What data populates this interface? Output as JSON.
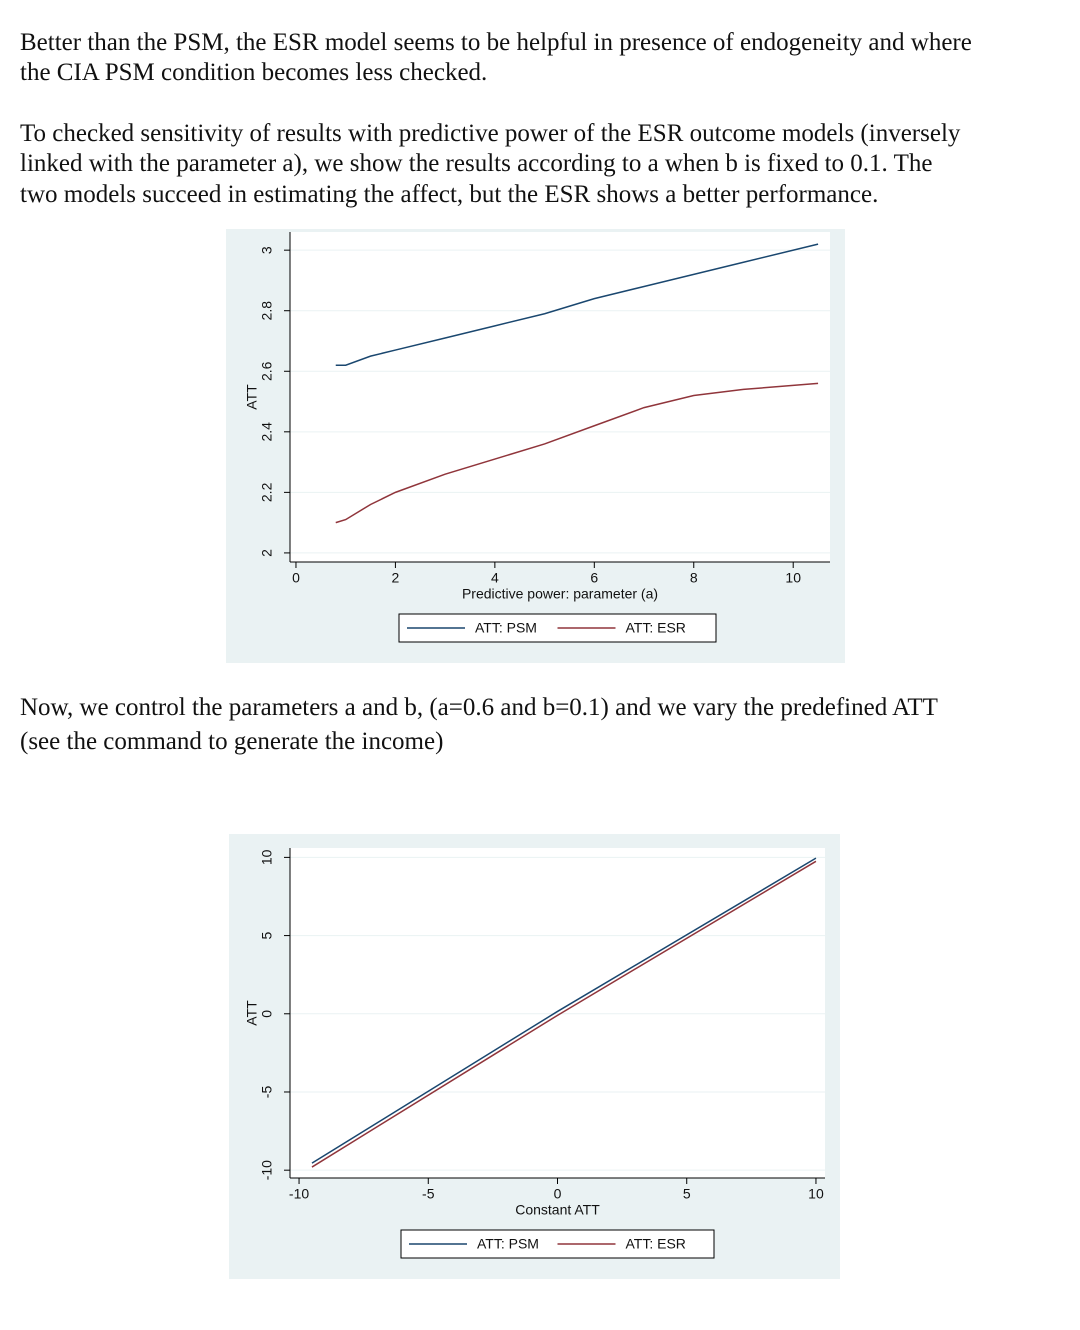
{
  "paragraphs": [
    {
      "lines": [
        "Better than the PSM, the ESR model seems to be helpful in presence of endogeneity and where",
        "the CIA PSM condition becomes less checked."
      ]
    },
    {
      "lines": [
        "To checked sensitivity of results with predictive power of the ESR outcome models (inversely",
        "linked with the parameter a), we show the results according to a when b is fixed to 0.1.   The",
        "two models succeed in estimating the affect, but the ESR shows a better performance."
      ]
    },
    {
      "lines": [
        "Now, we control the parameters a and b, (a=0.6 and b=0.1) and we vary the predefined ATT",
        "(see the command to generate the income)"
      ]
    }
  ],
  "chart_data": [
    {
      "type": "line",
      "xlabel": "Predictive power: parameter (a)",
      "ylabel": "ATT",
      "x": [
        0.8,
        1,
        1.5,
        2,
        3,
        4,
        5,
        6,
        7,
        8,
        9,
        10.5
      ],
      "series": [
        {
          "name": "ATT: PSM",
          "color": "#1a476f",
          "values": [
            2.62,
            2.62,
            2.65,
            2.67,
            2.71,
            2.75,
            2.79,
            2.84,
            2.88,
            2.92,
            2.96,
            3.02
          ]
        },
        {
          "name": "ATT: ESR",
          "color": "#90353b",
          "values": [
            2.1,
            2.11,
            2.16,
            2.2,
            2.26,
            2.31,
            2.36,
            2.42,
            2.48,
            2.52,
            2.54,
            2.56
          ]
        }
      ],
      "xlim": [
        -0.12,
        10.74
      ],
      "xticks": [
        0,
        2,
        4,
        6,
        8,
        10
      ],
      "ylim": [
        1.97,
        3.06
      ],
      "yticks": [
        2,
        2.2,
        2.4,
        2.6,
        2.8,
        3
      ],
      "grid": true,
      "legend": "bottom"
    },
    {
      "type": "line",
      "xlabel": "Constant ATT",
      "ylabel": "ATT",
      "x": [
        -9.5,
        0,
        10
      ],
      "series": [
        {
          "name": "ATT: PSM",
          "color": "#1a476f",
          "values": [
            -9.55,
            0.15,
            9.95
          ]
        },
        {
          "name": "ATT: ESR",
          "color": "#90353b",
          "values": [
            -9.8,
            -0.1,
            9.75
          ]
        }
      ],
      "xlim": [
        -10.35,
        10.35
      ],
      "xticks": [
        -10,
        -5,
        0,
        5,
        10
      ],
      "ylim": [
        -10.5,
        10.6
      ],
      "yticks": [
        -10,
        -5,
        0,
        5,
        10
      ],
      "grid": true,
      "legend": "bottom"
    }
  ]
}
